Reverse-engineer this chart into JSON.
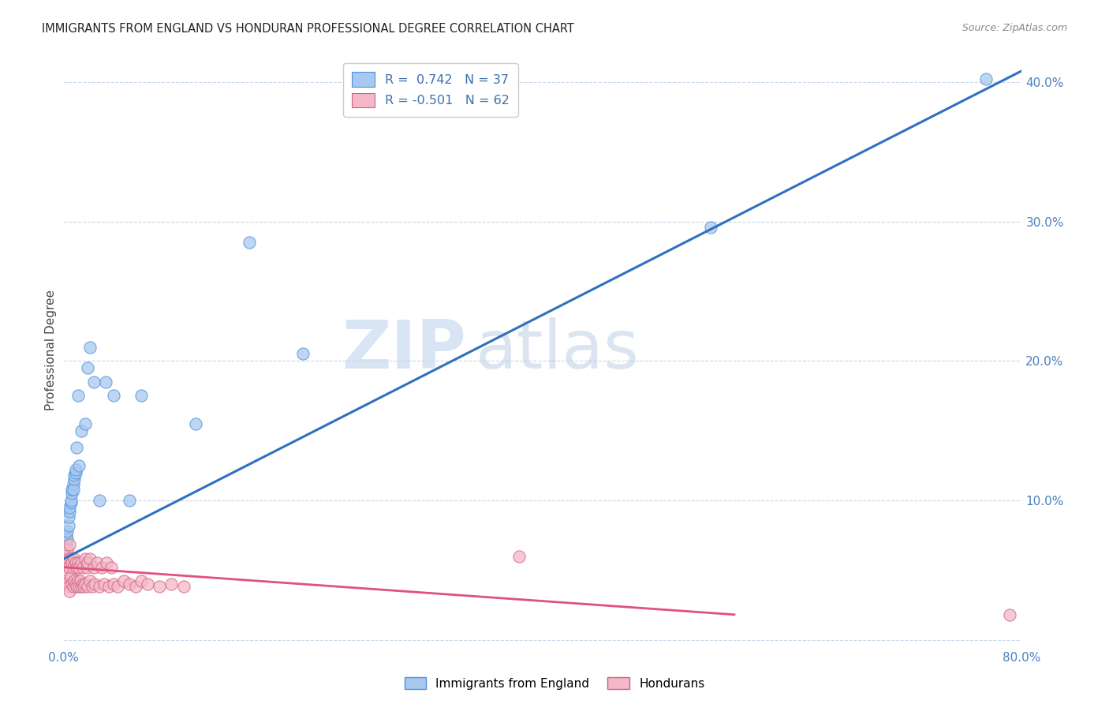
{
  "title": "IMMIGRANTS FROM ENGLAND VS HONDURAN PROFESSIONAL DEGREE CORRELATION CHART",
  "source": "Source: ZipAtlas.com",
  "ylabel": "Professional Degree",
  "xlim": [
    0.0,
    0.8
  ],
  "ylim": [
    -0.005,
    0.42
  ],
  "blue_color": "#a8c8f0",
  "blue_edge": "#4a90d9",
  "pink_color": "#f4b8c8",
  "pink_edge": "#d06080",
  "line_blue": "#3070c0",
  "line_pink": "#e05080",
  "watermark_zip": "ZIP",
  "watermark_atlas": "atlas",
  "blue_line_x0": 0.0,
  "blue_line_y0": 0.058,
  "blue_line_x1": 0.8,
  "blue_line_y1": 0.408,
  "pink_line_x0": 0.0,
  "pink_line_y0": 0.052,
  "pink_line_x1": 0.56,
  "pink_line_y1": 0.018,
  "blue_scatter_x": [
    0.001,
    0.002,
    0.002,
    0.003,
    0.003,
    0.004,
    0.004,
    0.005,
    0.005,
    0.006,
    0.006,
    0.007,
    0.007,
    0.008,
    0.008,
    0.009,
    0.009,
    0.01,
    0.01,
    0.011,
    0.012,
    0.013,
    0.015,
    0.018,
    0.02,
    0.022,
    0.025,
    0.03,
    0.035,
    0.042,
    0.055,
    0.065,
    0.11,
    0.155,
    0.2,
    0.54,
    0.77
  ],
  "blue_scatter_y": [
    0.062,
    0.068,
    0.075,
    0.072,
    0.078,
    0.082,
    0.088,
    0.092,
    0.095,
    0.098,
    0.1,
    0.105,
    0.108,
    0.112,
    0.108,
    0.115,
    0.118,
    0.12,
    0.122,
    0.138,
    0.175,
    0.125,
    0.15,
    0.155,
    0.195,
    0.21,
    0.185,
    0.1,
    0.185,
    0.175,
    0.1,
    0.175,
    0.155,
    0.285,
    0.205,
    0.296,
    0.402
  ],
  "pink_scatter_x": [
    0.001,
    0.001,
    0.002,
    0.002,
    0.003,
    0.003,
    0.004,
    0.004,
    0.005,
    0.005,
    0.005,
    0.006,
    0.006,
    0.007,
    0.007,
    0.008,
    0.008,
    0.009,
    0.009,
    0.01,
    0.01,
    0.011,
    0.011,
    0.012,
    0.012,
    0.013,
    0.013,
    0.014,
    0.015,
    0.015,
    0.016,
    0.016,
    0.017,
    0.018,
    0.018,
    0.019,
    0.02,
    0.02,
    0.022,
    0.022,
    0.024,
    0.025,
    0.026,
    0.028,
    0.03,
    0.032,
    0.034,
    0.036,
    0.038,
    0.04,
    0.042,
    0.045,
    0.05,
    0.055,
    0.06,
    0.065,
    0.07,
    0.08,
    0.09,
    0.1,
    0.38,
    0.79
  ],
  "pink_scatter_y": [
    0.045,
    0.06,
    0.042,
    0.055,
    0.048,
    0.065,
    0.038,
    0.058,
    0.035,
    0.052,
    0.068,
    0.045,
    0.058,
    0.04,
    0.055,
    0.038,
    0.052,
    0.042,
    0.058,
    0.04,
    0.055,
    0.038,
    0.052,
    0.042,
    0.055,
    0.038,
    0.052,
    0.042,
    0.038,
    0.055,
    0.04,
    0.052,
    0.038,
    0.058,
    0.04,
    0.052,
    0.038,
    0.055,
    0.042,
    0.058,
    0.038,
    0.052,
    0.04,
    0.055,
    0.038,
    0.052,
    0.04,
    0.055,
    0.038,
    0.052,
    0.04,
    0.038,
    0.042,
    0.04,
    0.038,
    0.042,
    0.04,
    0.038,
    0.04,
    0.038,
    0.06,
    0.018
  ]
}
